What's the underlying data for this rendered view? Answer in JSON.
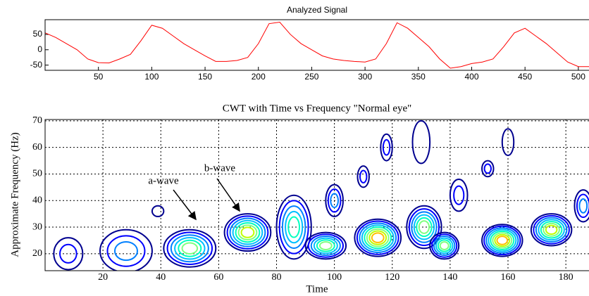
{
  "chart_data": [
    {
      "type": "line",
      "title": "Analyzed Signal",
      "x": [
        0,
        10,
        20,
        30,
        40,
        50,
        60,
        70,
        80,
        90,
        100,
        110,
        120,
        130,
        140,
        150,
        160,
        170,
        180,
        190,
        200,
        210,
        220,
        230,
        240,
        250,
        260,
        270,
        280,
        290,
        300,
        310,
        320,
        330,
        340,
        350,
        360,
        370,
        380,
        390,
        400,
        410,
        420,
        430,
        440,
        450,
        460,
        470,
        480,
        490,
        500,
        510
      ],
      "series": [
        {
          "name": "Analyzed Signal",
          "color": "#ff0000",
          "values": [
            55,
            40,
            20,
            0,
            -30,
            -42,
            -43,
            -30,
            -15,
            30,
            80,
            70,
            45,
            20,
            0,
            -20,
            -38,
            -38,
            -35,
            -25,
            20,
            85,
            90,
            50,
            20,
            0,
            -20,
            -30,
            -35,
            -38,
            -40,
            -30,
            20,
            88,
            70,
            40,
            10,
            -30,
            -60,
            -55,
            -45,
            -40,
            -30,
            10,
            55,
            70,
            45,
            20,
            -10,
            -40,
            -55,
            -55
          ]
        }
      ],
      "xlim": [
        0,
        510
      ],
      "ylim": [
        -67,
        98
      ],
      "xticks": [
        50,
        100,
        150,
        200,
        250,
        300,
        350,
        400,
        450,
        500
      ],
      "yticks": [
        -50,
        0,
        50
      ],
      "grid": false
    },
    {
      "type": "contour",
      "title": "CWT with Time vs Frequency \"Normal eye\"",
      "xlabel": "Time",
      "ylabel": "Approximate Frequency (Hz)",
      "xlim": [
        0,
        188
      ],
      "ylim": [
        13.6,
        70.5
      ],
      "xticks": [
        20,
        40,
        60,
        80,
        100,
        120,
        140,
        160,
        180
      ],
      "yticks": [
        20,
        30,
        40,
        50,
        60,
        70
      ],
      "grid": true,
      "colors": [
        "#00008f",
        "#0000ff",
        "#0080ff",
        "#00c0ff",
        "#00ffc0",
        "#80ff80",
        "#c0ff00",
        "#ffc000",
        "#ff4000",
        "#c00000"
      ],
      "peaks": {
        "x": [
          8,
          28,
          50,
          70,
          86,
          97,
          115,
          131,
          138,
          158,
          175,
          100,
          110,
          118,
          143,
          153,
          160,
          130,
          39,
          186
        ],
        "y": [
          20,
          21,
          22,
          28,
          30,
          23,
          26,
          30,
          23,
          25,
          29,
          40,
          49,
          60,
          42,
          52,
          62,
          62,
          36,
          38
        ],
        "rx": [
          5,
          9,
          9,
          8,
          6,
          7,
          8,
          6,
          5,
          7,
          7,
          3,
          2,
          2,
          3,
          2,
          2,
          3,
          2,
          3
        ],
        "ry": [
          6,
          8,
          7,
          7,
          12,
          5,
          7,
          8,
          5,
          6,
          6,
          6,
          4,
          5,
          6,
          3,
          5,
          8,
          2,
          6
        ],
        "levels": [
          2,
          3,
          6,
          7,
          5,
          6,
          8,
          6,
          6,
          8,
          7,
          3,
          2,
          2,
          2,
          2,
          1,
          1,
          1,
          3
        ]
      },
      "annotations": [
        "a-wave",
        "b-wave"
      ]
    }
  ]
}
